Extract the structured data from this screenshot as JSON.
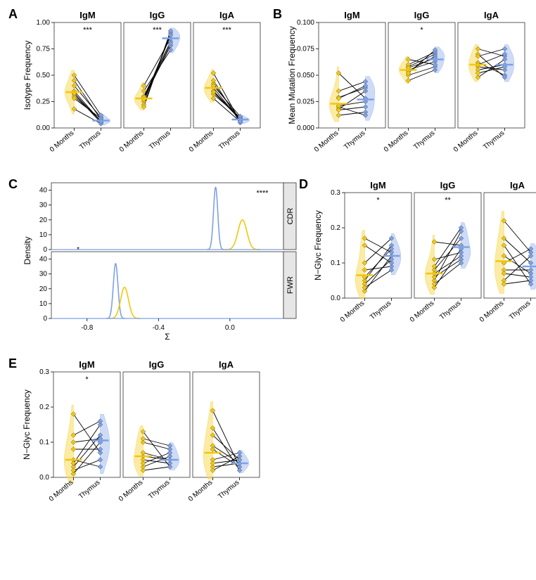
{
  "colors": {
    "yellow": "#f2c70c",
    "blue": "#7da1e6",
    "yellow_fill": "#f7da59",
    "blue_fill": "#a6bdee",
    "line": "#000000",
    "panel_border": "#333333",
    "bg": "#ffffff",
    "facet_strip": "#e6e6e6"
  },
  "fonts": {
    "title_size": 13,
    "axis_label_size": 12,
    "tick_size": 10,
    "panel_letter_size": 18
  },
  "xcats": [
    "0 Months",
    "Thymus"
  ],
  "panels": {
    "A": {
      "ylab": "Isotype Frequency",
      "ylim": [
        0,
        1.0
      ],
      "ytick_step": 0.25,
      "facets": [
        "IgM",
        "IgG",
        "IgA"
      ],
      "sig": [
        "***",
        "***",
        "***"
      ],
      "data": {
        "IgM": {
          "months0": [
            0.32,
            0.45,
            0.3,
            0.35,
            0.4,
            0.18,
            0.28,
            0.5,
            0.33
          ],
          "thymus": [
            0.05,
            0.08,
            0.07,
            0.06,
            0.1,
            0.04,
            0.09,
            0.12,
            0.06
          ]
        },
        "IgG": {
          "months0": [
            0.28,
            0.25,
            0.3,
            0.22,
            0.35,
            0.4,
            0.2,
            0.29,
            0.27
          ],
          "thymus": [
            0.78,
            0.88,
            0.82,
            0.9,
            0.74,
            0.85,
            0.92,
            0.8,
            0.88
          ]
        },
        "IgA": {
          "months0": [
            0.35,
            0.28,
            0.42,
            0.32,
            0.45,
            0.38,
            0.4,
            0.34,
            0.52
          ],
          "thymus": [
            0.09,
            0.06,
            0.08,
            0.1,
            0.05,
            0.07,
            0.11,
            0.08,
            0.06
          ]
        }
      },
      "means": {
        "IgM": [
          0.34,
          0.07
        ],
        "IgG": [
          0.28,
          0.85
        ],
        "IgA": [
          0.38,
          0.08
        ]
      }
    },
    "B": {
      "ylab": "Mean Mutation Frequency",
      "ylim": [
        0,
        0.1
      ],
      "ytick_step": 0.025,
      "facets": [
        "IgM",
        "IgG",
        "IgA"
      ],
      "sig": [
        "",
        "*",
        ""
      ],
      "data": {
        "IgM": {
          "months0": [
            0.018,
            0.052,
            0.029,
            0.012,
            0.035,
            0.02,
            0.028,
            0.021,
            0.017
          ],
          "thymus": [
            0.035,
            0.028,
            0.038,
            0.015,
            0.044,
            0.012,
            0.04,
            0.025,
            0.02
          ]
        },
        "IgG": {
          "months0": [
            0.055,
            0.058,
            0.045,
            0.06,
            0.05,
            0.054,
            0.057,
            0.052,
            0.065
          ],
          "thymus": [
            0.063,
            0.07,
            0.055,
            0.072,
            0.058,
            0.068,
            0.066,
            0.074,
            0.06
          ]
        },
        "IgA": {
          "months0": [
            0.058,
            0.055,
            0.062,
            0.07,
            0.048,
            0.075,
            0.06,
            0.068,
            0.052
          ],
          "thymus": [
            0.055,
            0.06,
            0.05,
            0.048,
            0.065,
            0.068,
            0.07,
            0.075,
            0.058
          ]
        }
      },
      "means": {
        "IgM": [
          0.023,
          0.027
        ],
        "IgG": [
          0.055,
          0.065
        ],
        "IgA": [
          0.06,
          0.06
        ]
      }
    },
    "C": {
      "xlab": "Σ",
      "ylab": "Density",
      "xlim": [
        -1.0,
        0.3
      ],
      "xticks": [
        -0.8,
        -0.4,
        0.0
      ],
      "ylim": [
        0,
        45
      ],
      "yticks": [
        0,
        10,
        20,
        30,
        40
      ],
      "strips": [
        "CDR",
        "FWR"
      ],
      "sig": [
        "****",
        ""
      ],
      "curves": {
        "CDR": {
          "yellow": {
            "mu": 0.07,
            "sigma": 0.025,
            "height": 20
          },
          "blue": {
            "mu": -0.08,
            "sigma": 0.012,
            "height": 42
          }
        },
        "FWR": {
          "yellow": {
            "mu": -0.59,
            "sigma": 0.022,
            "height": 21
          },
          "blue": {
            "mu": -0.64,
            "sigma": 0.013,
            "height": 37
          }
        }
      },
      "rug_blue_cdr": -0.85
    },
    "D": {
      "ylab": "N−Glyc Frequency",
      "ylim": [
        0,
        0.3
      ],
      "ytick_step": 0.1,
      "facets": [
        "IgM",
        "IgG",
        "IgA"
      ],
      "sig": [
        "*",
        "**",
        ""
      ],
      "data": {
        "IgM": {
          "months0": [
            0.02,
            0.17,
            0.05,
            0.08,
            0.15,
            0.04,
            0.1,
            0.06,
            0.03
          ],
          "thymus": [
            0.12,
            0.13,
            0.15,
            0.09,
            0.1,
            0.11,
            0.17,
            0.14,
            0.08
          ]
        },
        "IgG": {
          "months0": [
            0.03,
            0.16,
            0.08,
            0.05,
            0.06,
            0.11,
            0.09,
            0.04,
            0.07
          ],
          "thymus": [
            0.14,
            0.15,
            0.17,
            0.19,
            0.11,
            0.13,
            0.2,
            0.1,
            0.12
          ]
        },
        "IgA": {
          "months0": [
            0.22,
            0.05,
            0.04,
            0.12,
            0.08,
            0.15,
            0.1,
            0.17,
            0.07
          ],
          "thymus": [
            0.13,
            0.12,
            0.05,
            0.07,
            0.08,
            0.04,
            0.14,
            0.1,
            0.06
          ]
        }
      },
      "means": {
        "IgM": [
          0.065,
          0.12
        ],
        "IgG": [
          0.07,
          0.145
        ],
        "IgA": [
          0.105,
          0.09
        ]
      }
    },
    "E": {
      "ylab": "N−Glyc Frequency",
      "ylim": [
        0,
        0.3
      ],
      "ytick_step": 0.1,
      "facets": [
        "IgM",
        "IgG",
        "IgA"
      ],
      "sig": [
        "*",
        "",
        ""
      ],
      "data": {
        "IgM": {
          "months0": [
            0.01,
            0.18,
            0.05,
            0.03,
            0.04,
            0.08,
            0.1,
            0.02,
            0.12
          ],
          "thymus": [
            0.1,
            0.07,
            0.03,
            0.12,
            0.15,
            0.08,
            0.11,
            0.05,
            0.16
          ]
        },
        "IgG": {
          "months0": [
            0.06,
            0.13,
            0.1,
            0.05,
            0.03,
            0.04,
            0.07,
            0.11,
            0.02
          ],
          "thymus": [
            0.05,
            0.03,
            0.08,
            0.04,
            0.06,
            0.07,
            0.05,
            0.09,
            0.03
          ]
        },
        "IgA": {
          "months0": [
            0.03,
            0.19,
            0.12,
            0.02,
            0.08,
            0.09,
            0.05,
            0.14,
            0.04
          ],
          "thymus": [
            0.04,
            0.03,
            0.05,
            0.06,
            0.03,
            0.04,
            0.07,
            0.02,
            0.05
          ]
        }
      },
      "means": {
        "IgM": [
          0.05,
          0.105
        ],
        "IgG": [
          0.06,
          0.05
        ],
        "IgA": [
          0.07,
          0.04
        ]
      }
    }
  },
  "layout": {
    "paired_facet_w": 95,
    "paired_facet_h": 150,
    "paired_facet_gap": 4,
    "density_w": 330,
    "density_panel_h": 95,
    "marker_size": 7
  }
}
